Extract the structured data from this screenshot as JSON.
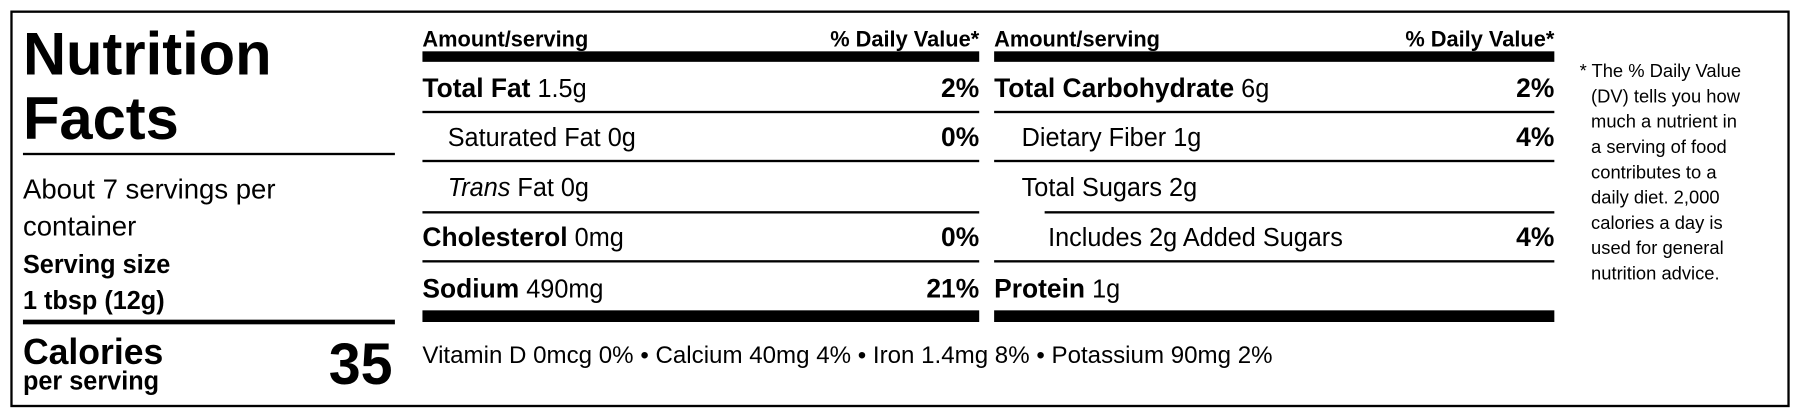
{
  "header": {
    "title_lines": [
      "Nutrition",
      "Facts"
    ],
    "servings_lines": [
      "About 7 servings per",
      "container"
    ],
    "serving_size_label": "Serving size",
    "serving_size": "1 tbsp (12g)",
    "calories_label": "Calories",
    "calories_sub": "per serving",
    "calories": "35"
  },
  "columns": [
    {
      "amount_header": "Amount/serving",
      "dv_header": "% Daily Value*",
      "rows": [
        {
          "name": "Total Fat",
          "amount": "1.5g",
          "dv": "2%"
        },
        {
          "name": "Saturated Fat",
          "amount": "0g",
          "dv": "0%"
        },
        {
          "italic": "Trans",
          "name": "Fat",
          "amount": "0g"
        },
        {
          "name": "Cholesterol",
          "amount": "0mg",
          "dv": "0%"
        },
        {
          "name": "Sodium",
          "amount": "490mg",
          "dv": "21%"
        }
      ]
    },
    {
      "amount_header": "Amount/serving",
      "dv_header": "% Daily Value*",
      "rows": [
        {
          "name": "Total Carbohydrate",
          "amount": "6g",
          "dv": "2%"
        },
        {
          "name": "Dietary Fiber",
          "amount": "1g",
          "dv": "4%"
        },
        {
          "name": "Total Sugars",
          "amount": "2g"
        },
        {
          "name": "Includes 2g Added Sugars",
          "dv": "4%"
        },
        {
          "name": "Protein",
          "amount": "1g"
        }
      ]
    }
  ],
  "footer": {
    "items": [
      "Vitamin D 0mcg 0%",
      "Calcium 40mg 4%",
      "Iron 1.4mg 8%",
      "Potassium 90mg 2%"
    ],
    "separator": "•"
  },
  "footnote_lines": [
    "* The % Daily Value",
    "(DV) tells you how",
    "much a nutrient in",
    "a serving of food",
    "contributes to a",
    "daily diet. 2,000",
    "calories a day is",
    "used for general",
    "nutrition advice."
  ]
}
